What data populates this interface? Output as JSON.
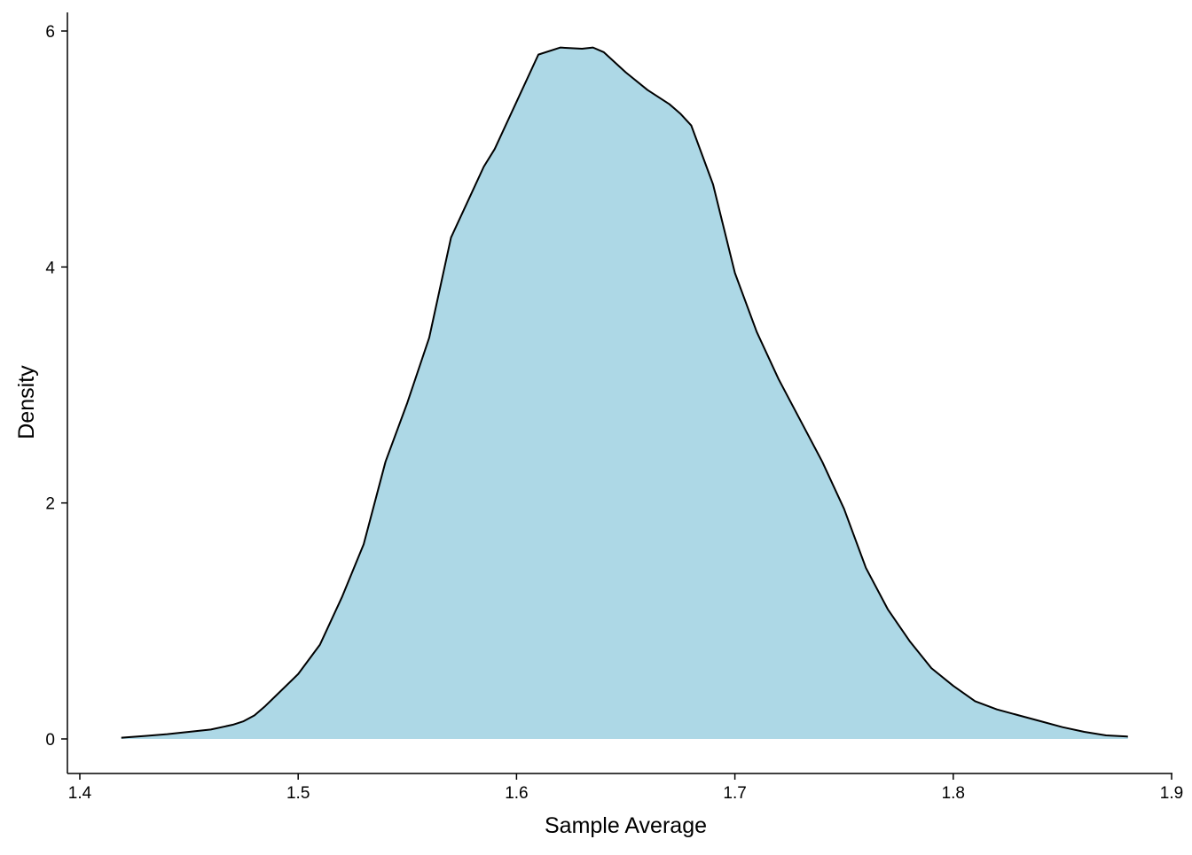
{
  "chart_data": {
    "type": "area",
    "xlabel": "Sample Average",
    "ylabel": "Density",
    "xlim": [
      1.4,
      1.9
    ],
    "ylim": [
      0,
      6
    ],
    "x_ticks": [
      1.4,
      1.5,
      1.6,
      1.7,
      1.8,
      1.9
    ],
    "x_tick_labels": [
      "1.4",
      "1.5",
      "1.6",
      "1.7",
      "1.8",
      "1.9"
    ],
    "y_ticks": [
      0,
      2,
      4,
      6
    ],
    "y_tick_labels": [
      "0",
      "2",
      "4",
      "6"
    ],
    "grid": false,
    "fill_color": "#ADD8E6",
    "line_color": "#000000",
    "series": [
      {
        "x": [
          1.419,
          1.43,
          1.44,
          1.45,
          1.46,
          1.47,
          1.475,
          1.48,
          1.485,
          1.49,
          1.5,
          1.51,
          1.52,
          1.53,
          1.54,
          1.55,
          1.56,
          1.57,
          1.58,
          1.585,
          1.59,
          1.6,
          1.61,
          1.62,
          1.63,
          1.635,
          1.64,
          1.65,
          1.66,
          1.67,
          1.675,
          1.68,
          1.69,
          1.7,
          1.71,
          1.72,
          1.73,
          1.74,
          1.75,
          1.76,
          1.77,
          1.78,
          1.79,
          1.8,
          1.81,
          1.82,
          1.83,
          1.84,
          1.85,
          1.86,
          1.87,
          1.88
        ],
        "y": [
          0.01,
          0.025,
          0.04,
          0.06,
          0.08,
          0.12,
          0.15,
          0.2,
          0.28,
          0.37,
          0.55,
          0.8,
          1.2,
          1.65,
          2.35,
          2.85,
          3.4,
          4.25,
          4.65,
          4.85,
          5.0,
          5.4,
          5.8,
          5.86,
          5.85,
          5.86,
          5.82,
          5.65,
          5.5,
          5.38,
          5.3,
          5.2,
          4.7,
          3.95,
          3.45,
          3.05,
          2.7,
          2.35,
          1.95,
          1.45,
          1.1,
          0.83,
          0.6,
          0.45,
          0.32,
          0.25,
          0.2,
          0.15,
          0.1,
          0.06,
          0.03,
          0.02
        ]
      }
    ]
  }
}
